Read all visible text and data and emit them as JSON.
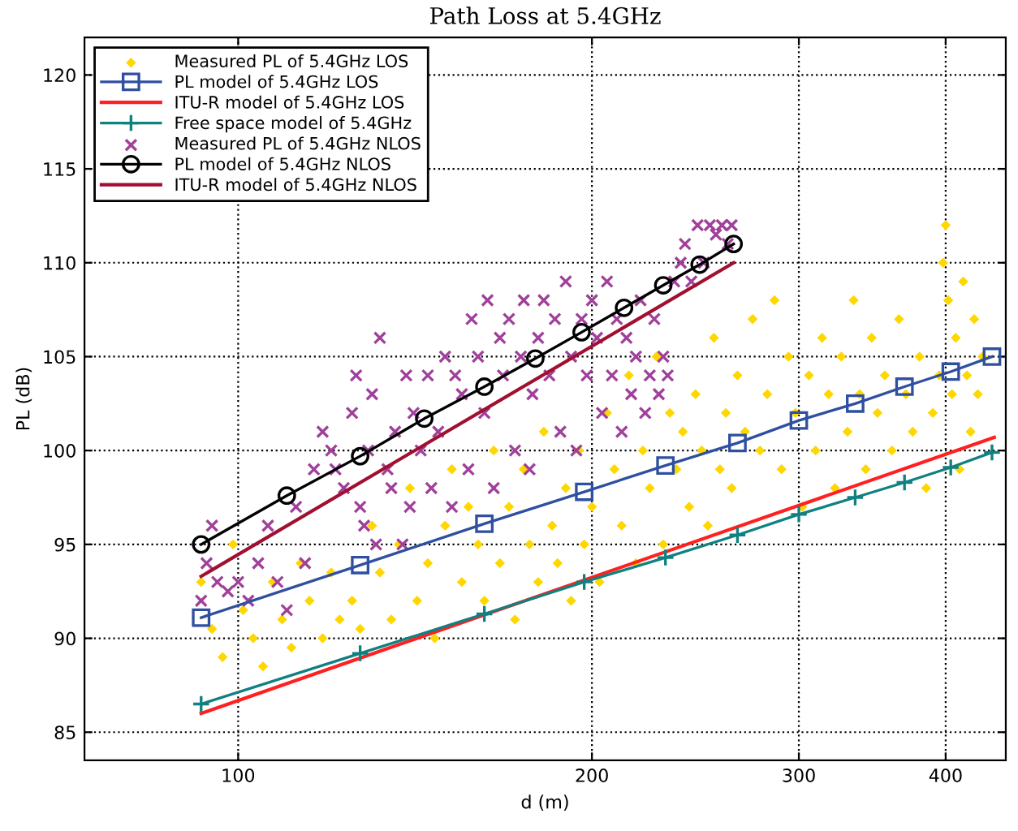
{
  "chart_data": {
    "type": "line",
    "title": "Path Loss at 5.4GHz",
    "xlabel": "d (m)",
    "ylabel": "PL (dB)",
    "log": "x",
    "xlim": [
      74,
      450
    ],
    "xticks": [
      100,
      200,
      300,
      400
    ],
    "ylim": [
      83.5,
      122
    ],
    "yticks": [
      85,
      90,
      95,
      100,
      105,
      110,
      115,
      120
    ],
    "grid": true,
    "legend": "top left",
    "line_style": "solid",
    "series": [
      {
        "name": "Measured PL of 5.4GHz LOS",
        "type": "scatter",
        "marker": "diamond",
        "color": "#ffd700",
        "x": [
          93,
          95,
          97,
          99,
          101,
          103,
          105,
          107,
          109,
          111,
          113,
          115,
          118,
          120,
          122,
          125,
          127,
          130,
          132,
          135,
          137,
          140,
          142,
          145,
          147,
          150,
          152,
          155,
          157,
          160,
          162,
          165,
          167,
          170,
          172,
          175,
          177,
          180,
          182,
          185,
          187,
          190,
          192,
          195,
          197,
          200,
          203,
          206,
          209,
          212,
          215,
          218,
          221,
          224,
          227,
          230,
          233,
          236,
          239,
          242,
          245,
          248,
          251,
          254,
          257,
          260,
          263,
          266,
          270,
          274,
          278,
          282,
          286,
          290,
          294,
          298,
          302,
          306,
          310,
          314,
          318,
          322,
          326,
          330,
          334,
          338,
          342,
          346,
          350,
          355,
          360,
          365,
          370,
          375,
          380,
          385,
          390,
          395,
          398,
          400,
          402,
          405,
          408,
          411,
          414,
          417,
          420,
          423,
          426,
          430
        ],
        "values": [
          93,
          90.5,
          89,
          95,
          91.5,
          90,
          88.5,
          93,
          91,
          89.5,
          94,
          92,
          90,
          93.5,
          91,
          92,
          90.5,
          96,
          93.5,
          91,
          95,
          98,
          92,
          94,
          90,
          96,
          99,
          93,
          97,
          95,
          92,
          100,
          94,
          97,
          91,
          99,
          95,
          93,
          101,
          96,
          94,
          98,
          92,
          100,
          95,
          97,
          93,
          102,
          99,
          96,
          104,
          94,
          100,
          98,
          105,
          95,
          102,
          99,
          101,
          97,
          103,
          100,
          96,
          106,
          99,
          102,
          98,
          104,
          101,
          107,
          100,
          103,
          108,
          99,
          105,
          102,
          97,
          104,
          100,
          106,
          103,
          98,
          105,
          101,
          108,
          103,
          99,
          106,
          102,
          104,
          100,
          107,
          103,
          101,
          105,
          98,
          102,
          104,
          110,
          112,
          108,
          103,
          106,
          99,
          109,
          104,
          101,
          107,
          103,
          105
        ]
      },
      {
        "name": "PL model of 5.4GHz LOS",
        "marker": "square",
        "color": "#2f4fa0",
        "x": [
          93,
          127,
          162,
          197,
          231,
          266,
          300,
          335,
          369,
          404,
          438
        ],
        "values": [
          91.1,
          93.9,
          96.1,
          97.8,
          99.2,
          100.4,
          101.6,
          102.5,
          103.4,
          104.2,
          105.0
        ]
      },
      {
        "name": "ITU-R model of 5.4GHz LOS",
        "marker": "none",
        "color": "#ff2020",
        "x": [
          93,
          440
        ],
        "values": [
          86.0,
          100.7
        ]
      },
      {
        "name": "Free space model of 5.4GHz",
        "marker": "plus",
        "color": "#108080",
        "x": [
          93,
          127,
          162,
          197,
          231,
          266,
          300,
          335,
          369,
          404,
          438
        ],
        "values": [
          86.5,
          89.2,
          91.3,
          93.0,
          94.3,
          95.5,
          96.6,
          97.5,
          98.3,
          99.1,
          99.9
        ]
      },
      {
        "name": "Measured PL of 5.4GHz NLOS",
        "type": "scatter",
        "marker": "cross",
        "color": "#a0409a",
        "x": [
          93,
          94,
          95,
          96,
          98,
          100,
          102,
          104,
          106,
          108,
          110,
          112,
          114,
          116,
          118,
          120,
          121,
          123,
          125,
          126,
          127,
          128,
          129,
          130,
          131,
          132,
          134,
          135,
          136,
          138,
          139,
          140,
          141,
          143,
          145,
          146,
          148,
          150,
          152,
          153,
          155,
          157,
          158,
          160,
          162,
          163,
          165,
          167,
          168,
          170,
          172,
          174,
          175,
          177,
          178,
          180,
          182,
          184,
          186,
          188,
          190,
          192,
          194,
          196,
          198,
          200,
          202,
          204,
          206,
          208,
          210,
          212,
          214,
          216,
          218,
          220,
          222,
          224,
          226,
          228,
          230,
          232,
          235,
          238,
          240,
          243,
          246,
          249,
          252,
          255,
          258,
          261,
          263
        ],
        "values": [
          92,
          94,
          96,
          93,
          92.5,
          93,
          92,
          94,
          96,
          93,
          91.5,
          97,
          94,
          99,
          101,
          100,
          99,
          98,
          102,
          104,
          97,
          96,
          100,
          103,
          95,
          106,
          99,
          98,
          101,
          95,
          104,
          97,
          102,
          100,
          104,
          98,
          101,
          105,
          97,
          104,
          103,
          99,
          107,
          105,
          102,
          108,
          98,
          106,
          104,
          107,
          100,
          105,
          108,
          99,
          103,
          106,
          108,
          104,
          107,
          101,
          109,
          105,
          100,
          107,
          104,
          108,
          106,
          102,
          109,
          104,
          107,
          101,
          106,
          103,
          105,
          108,
          102,
          104,
          107,
          103,
          105,
          104,
          109,
          110,
          111,
          109,
          112,
          110,
          112,
          111.5,
          112,
          111,
          112
        ]
      },
      {
        "name": "PL model of 5.4GHz NLOS",
        "marker": "circle",
        "color": "#000000",
        "x": [
          93,
          110,
          127,
          144,
          162,
          179,
          196,
          213,
          230,
          247,
          264
        ],
        "values": [
          95.0,
          97.6,
          99.7,
          101.7,
          103.4,
          104.9,
          106.3,
          107.6,
          108.8,
          109.9,
          111.0
        ]
      },
      {
        "name": "ITU-R model of 5.4GHz NLOS",
        "marker": "none",
        "color": "#a01030",
        "x": [
          93,
          264
        ],
        "values": [
          93.3,
          110.0
        ]
      }
    ]
  }
}
